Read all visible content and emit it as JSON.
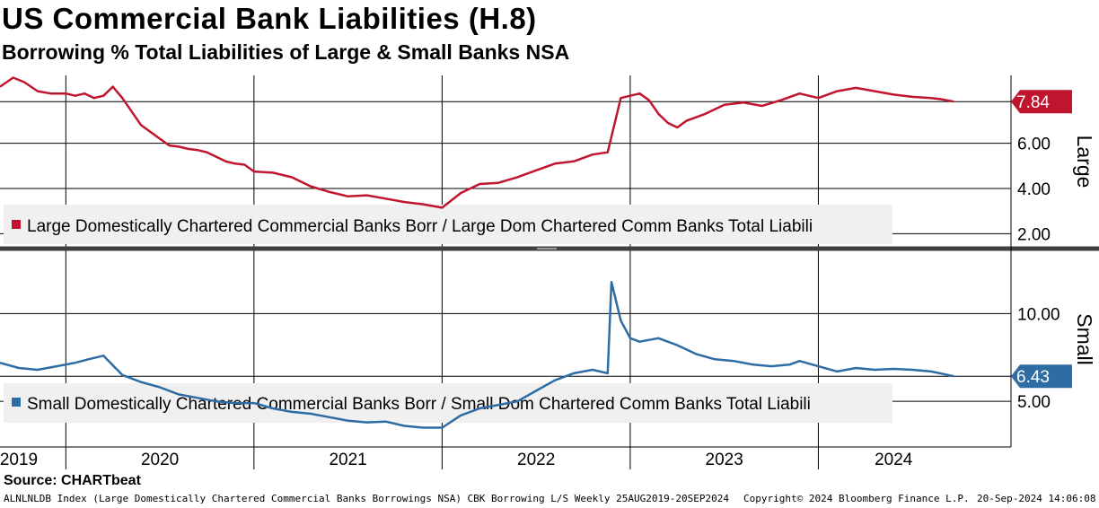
{
  "header": {
    "title": "US Commercial Bank Liabilities (H.8)",
    "subtitle": "Borrowing % Total Liabilities of Large & Small Banks NSA"
  },
  "footer": {
    "source": "Source: CHARTbeat",
    "description": "ALNLNLDB Index (Large Domestically Chartered Commercial Banks Borrowings NSA) CBK Borrowing L/S  Weekly 25AUG2019-20SEP2024",
    "copyright": "Copyright© 2024 Bloomberg Finance L.P.",
    "timestamp": "20-Sep-2024 14:06:08"
  },
  "colors": {
    "large": "#c0152f",
    "small": "#2e6ca4",
    "grid": "#000000",
    "legend_bg": "#f0f0f0",
    "divider": "#404040"
  },
  "chart_data": [
    {
      "type": "line",
      "panel": "top",
      "side_label": "Large",
      "legend": "Large Domestically Chartered Commercial Banks Borr / Large Dom Chartered Comm Banks Total Liabili",
      "ylim": [
        1.5,
        9.0
      ],
      "yticks": [
        "2.00",
        "4.00",
        "6.00"
      ],
      "ytick_values": [
        2,
        4,
        6
      ],
      "last_value_label": "7.84",
      "last_value": 7.84,
      "grid": true,
      "x": [
        2019.65,
        2019.72,
        2019.78,
        2019.85,
        2019.92,
        2020.0,
        2020.05,
        2020.1,
        2020.15,
        2020.2,
        2020.25,
        2020.3,
        2020.35,
        2020.4,
        2020.45,
        2020.5,
        2020.55,
        2020.6,
        2020.65,
        2020.7,
        2020.75,
        2020.8,
        2020.85,
        2020.9,
        2020.95,
        2021.0,
        2021.1,
        2021.2,
        2021.3,
        2021.4,
        2021.5,
        2021.6,
        2021.7,
        2021.8,
        2021.9,
        2022.0,
        2022.1,
        2022.2,
        2022.3,
        2022.4,
        2022.5,
        2022.6,
        2022.7,
        2022.8,
        2022.88,
        2022.95,
        2023.0,
        2023.05,
        2023.1,
        2023.15,
        2023.2,
        2023.25,
        2023.3,
        2023.4,
        2023.5,
        2023.6,
        2023.7,
        2023.8,
        2023.9,
        2024.0,
        2024.1,
        2024.2,
        2024.3,
        2024.4,
        2024.5,
        2024.6,
        2024.65,
        2024.72
      ],
      "values": [
        8.5,
        8.9,
        8.7,
        8.3,
        8.2,
        8.2,
        8.1,
        8.2,
        8.0,
        8.1,
        8.5,
        8.0,
        7.4,
        6.8,
        6.5,
        6.2,
        5.9,
        5.85,
        5.75,
        5.7,
        5.6,
        5.4,
        5.2,
        5.1,
        5.05,
        4.75,
        4.7,
        4.5,
        4.1,
        3.85,
        3.65,
        3.7,
        3.55,
        3.4,
        3.3,
        3.15,
        3.8,
        4.2,
        4.25,
        4.5,
        4.8,
        5.1,
        5.2,
        5.5,
        5.6,
        8.0,
        8.1,
        8.2,
        7.9,
        7.3,
        6.9,
        6.7,
        7.0,
        7.3,
        7.7,
        7.8,
        7.65,
        7.9,
        8.2,
        8.0,
        8.3,
        8.45,
        8.3,
        8.15,
        8.05,
        8.0,
        7.95,
        7.84
      ]
    },
    {
      "type": "line",
      "panel": "bottom",
      "side_label": "Small",
      "legend": "Small Domestically Chartered Commercial Banks Borr / Small Dom Chartered Comm Banks Total Liabili",
      "ylim": [
        2.4,
        13.5
      ],
      "yticks": [
        "5.00",
        "10.00"
      ],
      "ytick_values": [
        5,
        10
      ],
      "last_value_label": "6.43",
      "last_value": 6.43,
      "grid": true,
      "x": [
        2019.65,
        2019.75,
        2019.85,
        2019.95,
        2020.05,
        2020.12,
        2020.2,
        2020.3,
        2020.4,
        2020.5,
        2020.6,
        2020.7,
        2020.8,
        2020.9,
        2021.0,
        2021.1,
        2021.2,
        2021.3,
        2021.4,
        2021.5,
        2021.6,
        2021.7,
        2021.8,
        2021.9,
        2022.0,
        2022.1,
        2022.2,
        2022.3,
        2022.4,
        2022.5,
        2022.6,
        2022.7,
        2022.8,
        2022.88,
        2022.9,
        2022.95,
        2023.0,
        2023.05,
        2023.15,
        2023.25,
        2023.35,
        2023.45,
        2023.55,
        2023.65,
        2023.75,
        2023.85,
        2023.9,
        2024.0,
        2024.1,
        2024.2,
        2024.3,
        2024.4,
        2024.5,
        2024.6,
        2024.72
      ],
      "values": [
        7.2,
        6.9,
        6.8,
        7.0,
        7.2,
        7.4,
        7.6,
        6.5,
        6.1,
        5.8,
        5.4,
        5.2,
        5.0,
        4.9,
        4.9,
        4.6,
        4.4,
        4.3,
        4.1,
        3.9,
        3.8,
        3.85,
        3.6,
        3.5,
        3.5,
        4.2,
        4.6,
        4.8,
        5.0,
        5.6,
        6.2,
        6.6,
        6.8,
        6.6,
        11.8,
        9.6,
        8.6,
        8.4,
        8.6,
        8.2,
        7.7,
        7.4,
        7.3,
        7.1,
        7.0,
        7.1,
        7.3,
        7.0,
        6.7,
        6.9,
        6.8,
        6.85,
        6.8,
        6.7,
        6.43
      ]
    }
  ],
  "x_axis": {
    "labels": [
      "2019",
      "2020",
      "2021",
      "2022",
      "2023",
      "2024"
    ],
    "label_centers": [
      2019.75,
      2020.5,
      2021.5,
      2022.5,
      2023.5,
      2024.4
    ],
    "gridlines": [
      2020.0,
      2021.0,
      2022.0,
      2023.0,
      2024.0
    ],
    "xlim": [
      2019.65,
      2024.9
    ]
  }
}
